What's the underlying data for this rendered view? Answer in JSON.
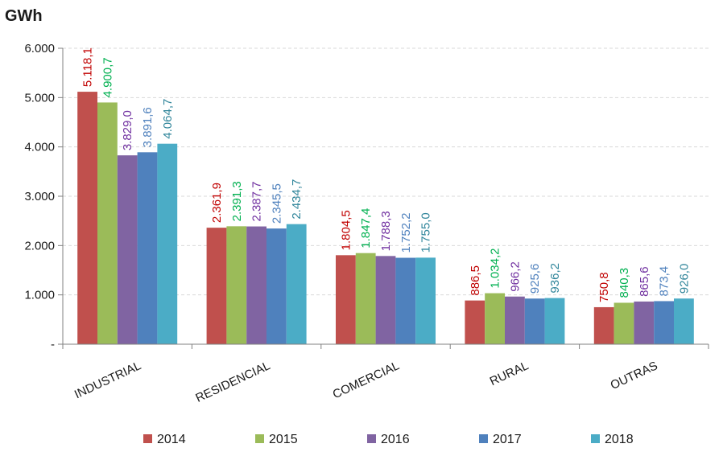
{
  "chart_data": {
    "type": "bar",
    "unit_label": "GWh",
    "categories": [
      "INDUSTRIAL",
      "RESIDENCIAL",
      "COMERCIAL",
      "RURAL",
      "OUTRAS"
    ],
    "series": [
      {
        "name": "2014",
        "color": "#c0504d",
        "label_color": "#c00000",
        "values": [
          5118.1,
          2361.9,
          1804.5,
          886.5,
          750.8
        ],
        "labels": [
          "5.118,1",
          "2.361,9",
          "1.804,5",
          "886,5",
          "750,8"
        ]
      },
      {
        "name": "2015",
        "color": "#9bbb59",
        "label_color": "#00b050",
        "values": [
          4900.7,
          2391.3,
          1847.4,
          1034.2,
          840.3
        ],
        "labels": [
          "4.900,7",
          "2.391,3",
          "1.847,4",
          "1.034,2",
          "840,3"
        ]
      },
      {
        "name": "2016",
        "color": "#8064a2",
        "label_color": "#7030a0",
        "values": [
          3829.0,
          2387.7,
          1788.3,
          966.2,
          865.6
        ],
        "labels": [
          "3.829,0",
          "2.387,7",
          "1.788,3",
          "966,2",
          "865,6"
        ]
      },
      {
        "name": "2017",
        "color": "#4f81bd",
        "label_color": "#4f81bd",
        "values": [
          3891.6,
          2345.5,
          1752.2,
          925.6,
          873.4
        ],
        "labels": [
          "3.891,6",
          "2.345,5",
          "1.752,2",
          "925,6",
          "873,4"
        ]
      },
      {
        "name": "2018",
        "color": "#4bacc6",
        "label_color": "#31869b",
        "values": [
          4064.7,
          2434.7,
          1755.0,
          936.2,
          926.0
        ],
        "labels": [
          "4.064,7",
          "2.434,7",
          "1.755,0",
          "936,2",
          "926,0"
        ]
      }
    ],
    "ylim": [
      0,
      6000
    ],
    "yticks": [
      0,
      1000,
      2000,
      3000,
      4000,
      5000,
      6000
    ],
    "ytick_labels": [
      "-",
      "1.000",
      "2.000",
      "3.000",
      "4.000",
      "5.000",
      "6.000"
    ],
    "grid": true,
    "legend_position": "bottom"
  }
}
